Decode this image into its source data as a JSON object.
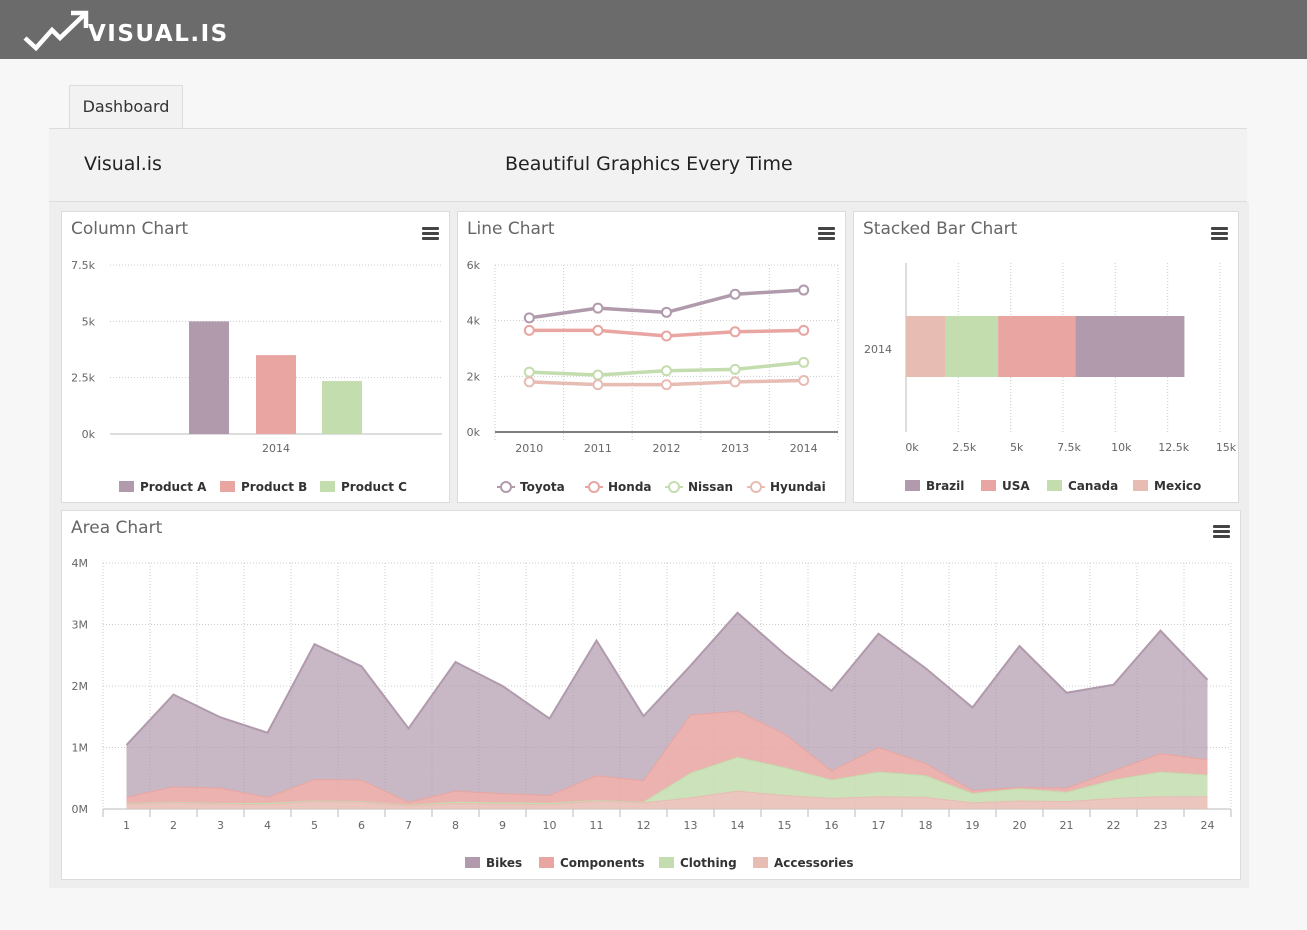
{
  "app": {
    "brand": "VISUAL.IS"
  },
  "tabs": [
    {
      "label": "Dashboard"
    }
  ],
  "header": {
    "left": "Visual.is",
    "center": "Beautiful Graphics Every Time"
  },
  "colors": {
    "purple": "#b09aac",
    "red": "#e8a5a1",
    "green": "#c3ddae",
    "pink": "#e7bcb3"
  },
  "charts": {
    "column": {
      "title": "Column Chart",
      "chart_data": {
        "type": "bar",
        "categories": [
          "2014"
        ],
        "series": [
          {
            "name": "Product A",
            "values": [
              5000
            ]
          },
          {
            "name": "Product B",
            "values": [
              3500
            ]
          },
          {
            "name": "Product C",
            "values": [
              2350
            ]
          }
        ],
        "ylim": [
          0,
          7500
        ],
        "yticks": [
          "0k",
          "2.5k",
          "5k",
          "7.5k"
        ],
        "grid": true,
        "legend": "bottom"
      }
    },
    "line": {
      "title": "Line Chart",
      "chart_data": {
        "type": "line",
        "x": [
          "2010",
          "2011",
          "2012",
          "2013",
          "2014"
        ],
        "series": [
          {
            "name": "Toyota",
            "values": [
              4100,
              4450,
              4300,
              4950,
              5100
            ]
          },
          {
            "name": "Honda",
            "values": [
              3650,
              3650,
              3450,
              3600,
              3650
            ]
          },
          {
            "name": "Nissan",
            "values": [
              2150,
              2050,
              2200,
              2250,
              2500
            ]
          },
          {
            "name": "Hyundai",
            "values": [
              1800,
              1700,
              1700,
              1800,
              1850
            ]
          }
        ],
        "ylim": [
          0,
          6000
        ],
        "yticks": [
          "0k",
          "2k",
          "4k",
          "6k"
        ],
        "grid": true,
        "legend": "bottom"
      }
    },
    "stacked": {
      "title": "Stacked Bar Chart",
      "chart_data": {
        "type": "bar",
        "orientation": "horizontal",
        "stacked": true,
        "categories": [
          "2014"
        ],
        "series": [
          {
            "name": "Brazil",
            "values": [
              5200
            ]
          },
          {
            "name": "USA",
            "values": [
              3700
            ]
          },
          {
            "name": "Canada",
            "values": [
              2500
            ]
          },
          {
            "name": "Mexico",
            "values": [
              1900
            ]
          }
        ],
        "xlim": [
          0,
          15000
        ],
        "xticks": [
          "0k",
          "2.5k",
          "5k",
          "7.5k",
          "10k",
          "12.5k",
          "15k"
        ],
        "grid": true,
        "legend": "bottom"
      }
    },
    "area": {
      "title": "Area Chart",
      "chart_data": {
        "type": "area",
        "stacked": true,
        "x": [
          "1",
          "2",
          "3",
          "4",
          "5",
          "6",
          "7",
          "8",
          "9",
          "10",
          "11",
          "12",
          "13",
          "14",
          "15",
          "16",
          "17",
          "18",
          "19",
          "20",
          "21",
          "22",
          "23",
          "24"
        ],
        "series": [
          {
            "name": "Bikes",
            "values": [
              850000,
              1500000,
              1150000,
              1050000,
              2200000,
              1850000,
              1200000,
              2100000,
              1750000,
              1250000,
              2200000,
              1050000,
              800000,
              1600000,
              1300000,
              1300000,
              1850000,
              1550000,
              1350000,
              2300000,
              1550000,
              1400000,
              2000000,
              1300000
            ]
          },
          {
            "name": "Components",
            "values": [
              100000,
              250000,
              250000,
              100000,
              350000,
              350000,
              50000,
              180000,
              150000,
              130000,
              400000,
              350000,
              950000,
              750000,
              550000,
              150000,
              400000,
              200000,
              50000,
              20000,
              70000,
              150000,
              300000,
              250000
            ]
          },
          {
            "name": "Clothing",
            "values": [
              10000,
              10000,
              10000,
              20000,
              10000,
              10000,
              10000,
              20000,
              20000,
              20000,
              10000,
              10000,
              400000,
              550000,
              450000,
              300000,
              400000,
              350000,
              150000,
              200000,
              150000,
              300000,
              400000,
              350000
            ]
          },
          {
            "name": "Accessories",
            "values": [
              80000,
              100000,
              80000,
              70000,
              120000,
              110000,
              50000,
              90000,
              80000,
              70000,
              130000,
              100000,
              180000,
              290000,
              220000,
              170000,
              200000,
              190000,
              100000,
              130000,
              120000,
              170000,
              200000,
              200000
            ]
          }
        ],
        "ylim": [
          0,
          4000000
        ],
        "yticks": [
          "0M",
          "1M",
          "2M",
          "3M",
          "4M"
        ],
        "grid": true,
        "legend": "bottom"
      }
    }
  }
}
